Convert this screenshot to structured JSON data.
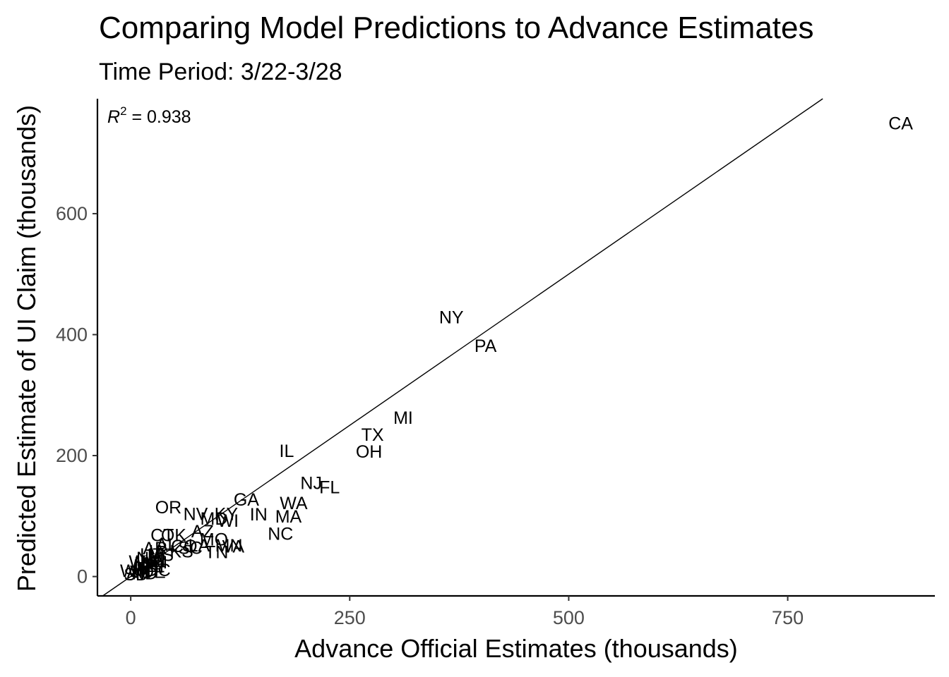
{
  "chart_data": {
    "type": "scatter",
    "title": "Comparing Model Predictions to Advance Estimates",
    "subtitle": "Time Period:  3/22-3/28",
    "xlabel": "Advance Official Estimates (thousands)",
    "ylabel": "Predicted Estimate of UI Claim (thousands)",
    "xlim": [
      -38,
      918
    ],
    "ylim": [
      -32,
      790
    ],
    "xticks": [
      0,
      250,
      500,
      750
    ],
    "yticks": [
      0,
      200,
      400,
      600
    ],
    "grid": false,
    "legend": "none",
    "annotation": {
      "r2_symbol": "R",
      "r2_exponent": "2",
      "r2_text": " = 0.938"
    },
    "fit_line": {
      "intercept": 0,
      "slope": 1
    },
    "points": [
      {
        "label": "CA",
        "x": 879,
        "y": 750
      },
      {
        "label": "NY",
        "x": 366,
        "y": 429
      },
      {
        "label": "PA",
        "x": 405,
        "y": 382
      },
      {
        "label": "MI",
        "x": 311,
        "y": 263
      },
      {
        "label": "TX",
        "x": 276,
        "y": 235
      },
      {
        "label": "OH",
        "x": 272,
        "y": 207
      },
      {
        "label": "IL",
        "x": 178,
        "y": 208
      },
      {
        "label": "NJ",
        "x": 206,
        "y": 155
      },
      {
        "label": "FL",
        "x": 227,
        "y": 148
      },
      {
        "label": "WA",
        "x": 186,
        "y": 122
      },
      {
        "label": "MA",
        "x": 180,
        "y": 100
      },
      {
        "label": "NC",
        "x": 171,
        "y": 71
      },
      {
        "label": "GA",
        "x": 132,
        "y": 128
      },
      {
        "label": "IN",
        "x": 146,
        "y": 103
      },
      {
        "label": "KY",
        "x": 109,
        "y": 104
      },
      {
        "label": "WI",
        "x": 111,
        "y": 93
      },
      {
        "label": "MD",
        "x": 95,
        "y": 96
      },
      {
        "label": "NV",
        "x": 74,
        "y": 104
      },
      {
        "label": "OR",
        "x": 43,
        "y": 115
      },
      {
        "label": "OK",
        "x": 49,
        "y": 69
      },
      {
        "label": "CT",
        "x": 36,
        "y": 69
      },
      {
        "label": "AZ",
        "x": 82,
        "y": 75
      },
      {
        "label": "MO",
        "x": 95,
        "y": 62
      },
      {
        "label": "MN",
        "x": 112,
        "y": 52
      },
      {
        "label": "VA",
        "x": 117,
        "y": 50
      },
      {
        "label": "TN",
        "x": 98,
        "y": 41
      },
      {
        "label": "CO",
        "x": 61,
        "y": 51
      },
      {
        "label": "SC",
        "x": 68,
        "y": 48
      },
      {
        "label": "LA",
        "x": 78,
        "y": 52
      },
      {
        "label": "AL",
        "x": 41,
        "y": 53
      },
      {
        "label": "AR",
        "x": 28,
        "y": 47
      },
      {
        "label": "IA",
        "x": 30,
        "y": 42
      },
      {
        "label": "KS",
        "x": 58,
        "y": 42
      },
      {
        "label": "UT",
        "x": 24,
        "y": 37
      },
      {
        "label": "MS",
        "x": 34,
        "y": 36
      },
      {
        "label": "NM",
        "x": 22,
        "y": 31
      },
      {
        "label": "NH",
        "x": 25,
        "y": 26
      },
      {
        "label": "ME",
        "x": 19,
        "y": 22
      },
      {
        "label": "RI",
        "x": 32,
        "y": 24
      },
      {
        "label": "WV",
        "x": 14,
        "y": 25
      },
      {
        "label": "NE",
        "x": 17,
        "y": 18
      },
      {
        "label": "HI",
        "x": 28,
        "y": 17
      },
      {
        "label": "ID",
        "x": 13,
        "y": 14
      },
      {
        "label": "MT",
        "x": 21,
        "y": 12
      },
      {
        "label": "DE",
        "x": 26,
        "y": 8
      },
      {
        "label": "VT",
        "x": 12,
        "y": 8
      },
      {
        "label": "ND",
        "x": 16,
        "y": 6
      },
      {
        "label": "SD",
        "x": 6,
        "y": 4
      },
      {
        "label": "AK",
        "x": 9,
        "y": 8
      },
      {
        "label": "WY",
        "x": 4,
        "y": 10
      },
      {
        "label": "DC",
        "x": 31,
        "y": 11
      }
    ]
  }
}
